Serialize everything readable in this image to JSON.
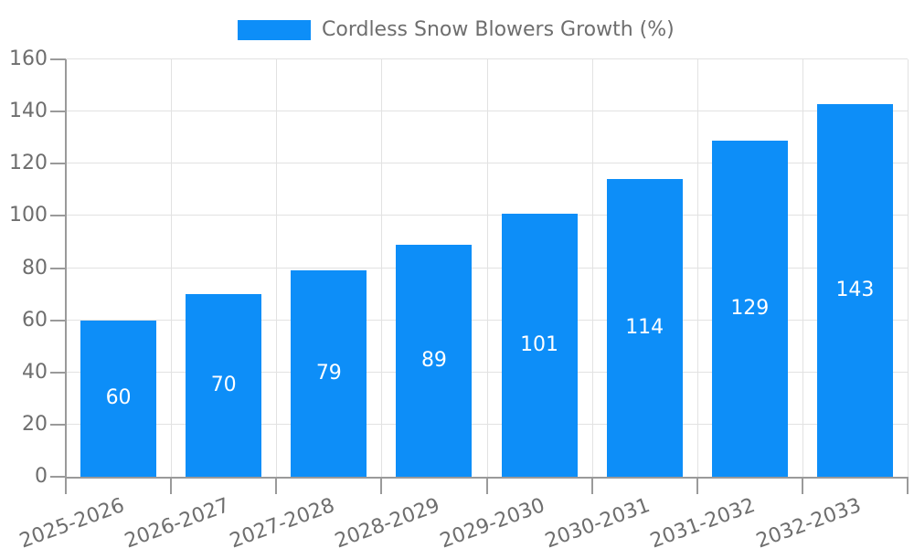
{
  "chart_data": {
    "type": "bar",
    "title": "",
    "xlabel": "",
    "ylabel": "",
    "categories": [
      "2025-2026",
      "2026-2027",
      "2027-2028",
      "2028-2029",
      "2029-2030",
      "2030-2031",
      "2031-2032",
      "2032-2033"
    ],
    "series": [
      {
        "name": "Cordless Snow Blowers Growth (%)",
        "color": "#0d8ef8",
        "values": [
          60,
          70,
          79,
          89,
          101,
          114,
          129,
          143
        ]
      }
    ],
    "ylim": [
      0,
      160
    ],
    "y_ticks": [
      0,
      20,
      40,
      60,
      80,
      100,
      120,
      140,
      160
    ],
    "legend": {
      "position": "top-center",
      "entries": [
        "Cordless Snow Blowers Growth (%)"
      ]
    },
    "grid": {
      "horizontal": true,
      "vertical": true
    },
    "value_labels": {
      "position": "inside-center",
      "values": [
        "60",
        "70",
        "79",
        "89",
        "101",
        "114",
        "129",
        "143"
      ]
    },
    "x_label_rotation_deg": -20
  },
  "colors": {
    "bar": "#0d8ef8",
    "background": "#ffffff",
    "gridline": "#e2e2e2",
    "axis": "#9a9a9a",
    "tick": "#9a9a9a",
    "axis_label_text": "#6e6e6e",
    "legend_text": "#6e6e6e",
    "value_label_text": "#ffffff"
  }
}
